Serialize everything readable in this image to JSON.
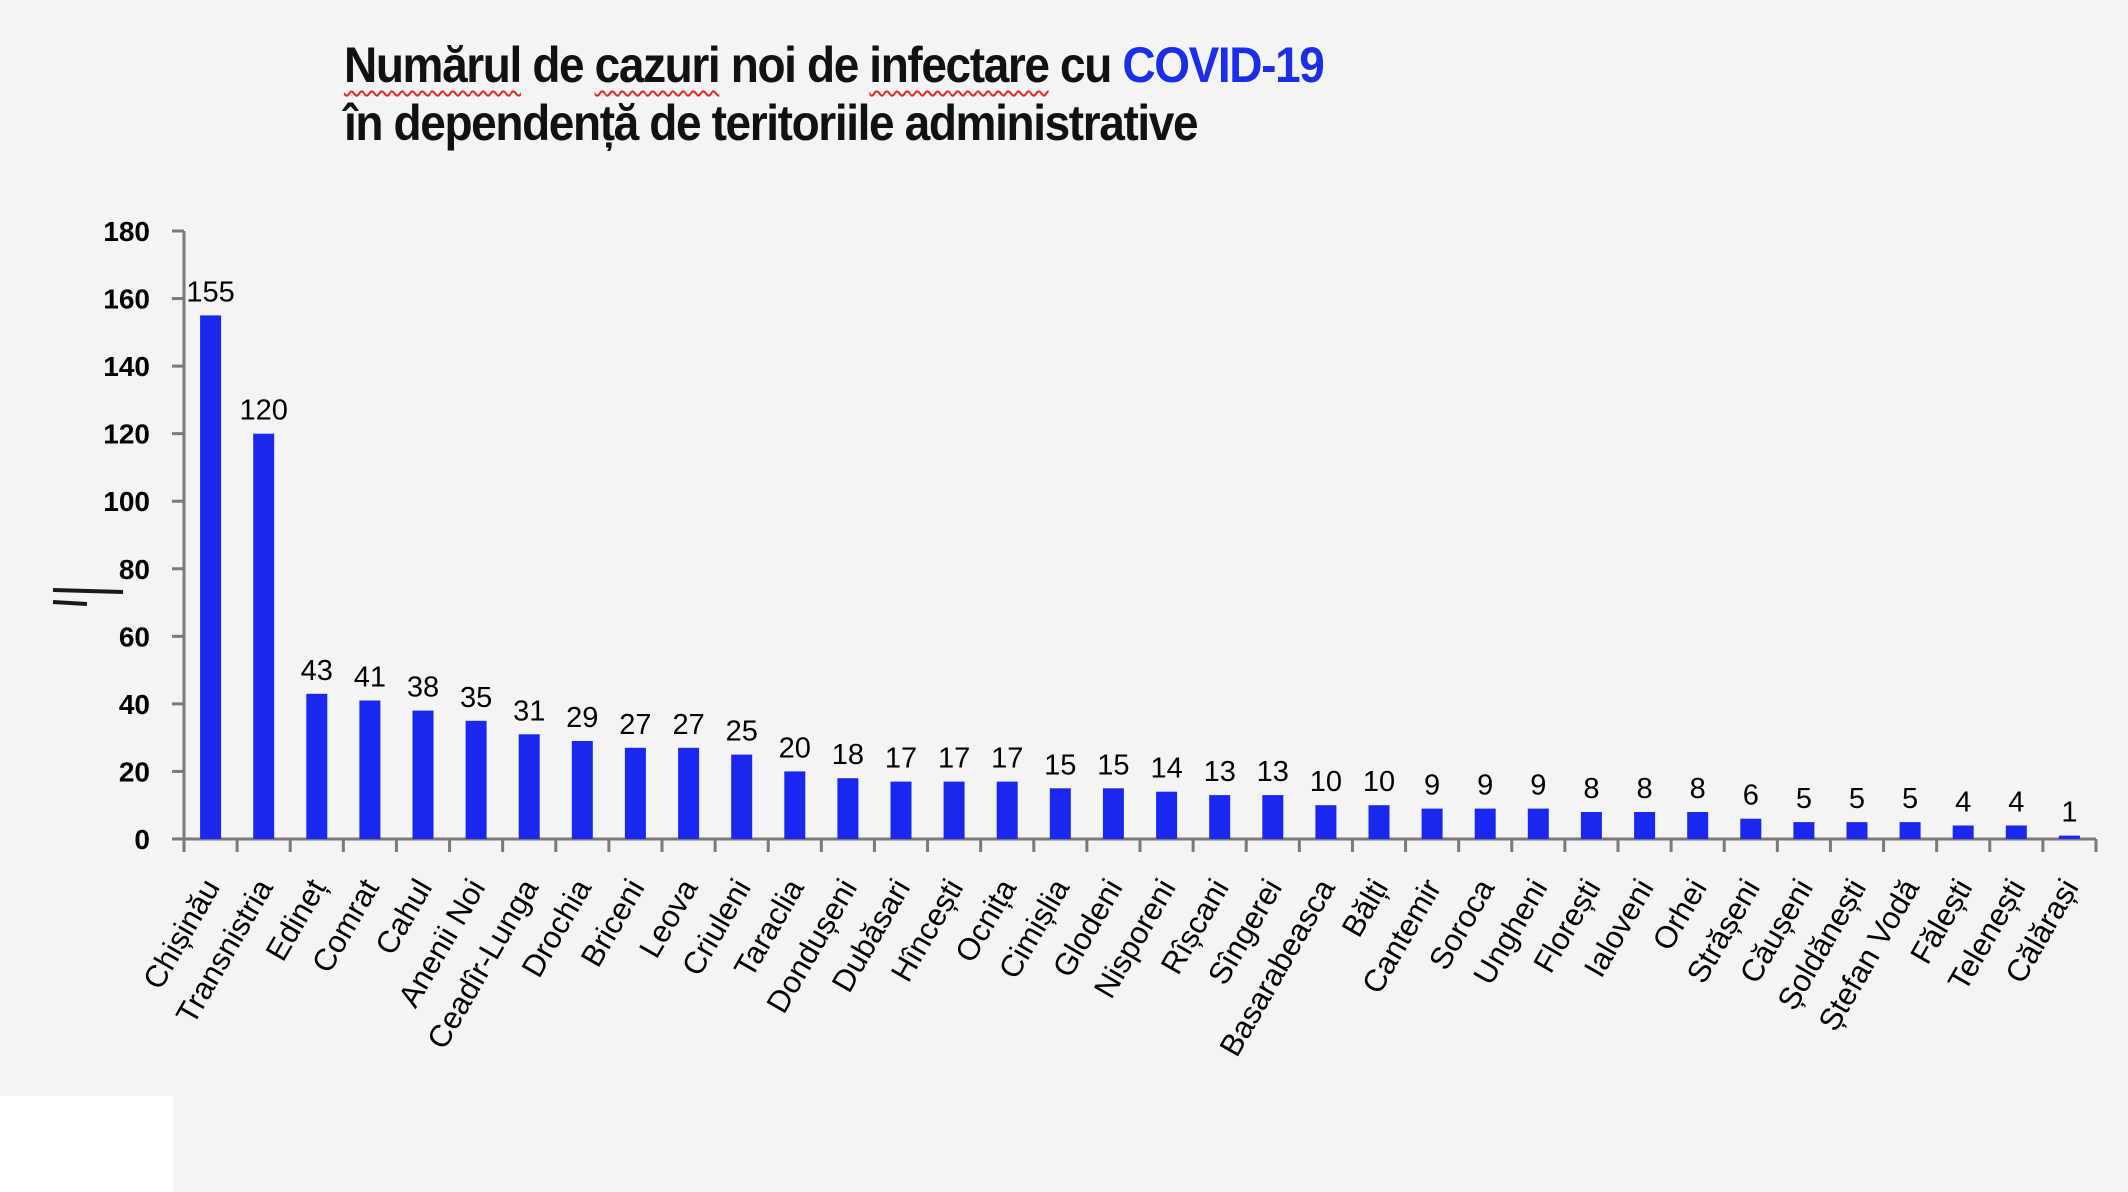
{
  "title": {
    "line1_parts": [
      "Numărul",
      " de ",
      "cazuri",
      " noi de ",
      "infectare",
      " cu "
    ],
    "line1_accent": "COVID-19",
    "line2": "în dependență de teritoriile administrative",
    "accent_color": "#1a2ee8"
  },
  "chart_data": {
    "type": "bar",
    "title": "Numărul de cazuri noi de infectare cu COVID-19 în dependență de teritoriile administrative",
    "xlabel": "",
    "ylabel": "",
    "ylim": [
      0,
      180
    ],
    "yticks": [
      "0",
      "20",
      "40",
      "60",
      "80",
      "100",
      "120",
      "140",
      "160",
      "180"
    ],
    "grid": false,
    "bar_color": "#1a28ef",
    "categories": [
      "Chișinău",
      "Transnistria",
      "Edineț",
      "Comrat",
      "Cahul",
      "Anenii Noi",
      "Ceadîr-Lunga",
      "Drochia",
      "Briceni",
      "Leova",
      "Criuleni",
      "Taraclia",
      "Dondușeni",
      "Dubăsari",
      "Hîncești",
      "Ocnița",
      "Cimișlia",
      "Glodeni",
      "Nisporeni",
      "Rîșcani",
      "Sîngerei",
      "Basarabeasca",
      "Bălți",
      "Cantemir",
      "Soroca",
      "Ungheni",
      "Florești",
      "Ialoveni",
      "Orhei",
      "Strășeni",
      "Căușeni",
      "Șoldănești",
      "Ștefan Vodă",
      "Fălești",
      "Telenești",
      "Călărași"
    ],
    "values": [
      155,
      120,
      43,
      41,
      38,
      35,
      31,
      29,
      27,
      27,
      25,
      20,
      18,
      17,
      17,
      17,
      15,
      15,
      14,
      13,
      13,
      10,
      10,
      9,
      9,
      9,
      8,
      8,
      8,
      6,
      5,
      5,
      5,
      4,
      4,
      1
    ]
  }
}
